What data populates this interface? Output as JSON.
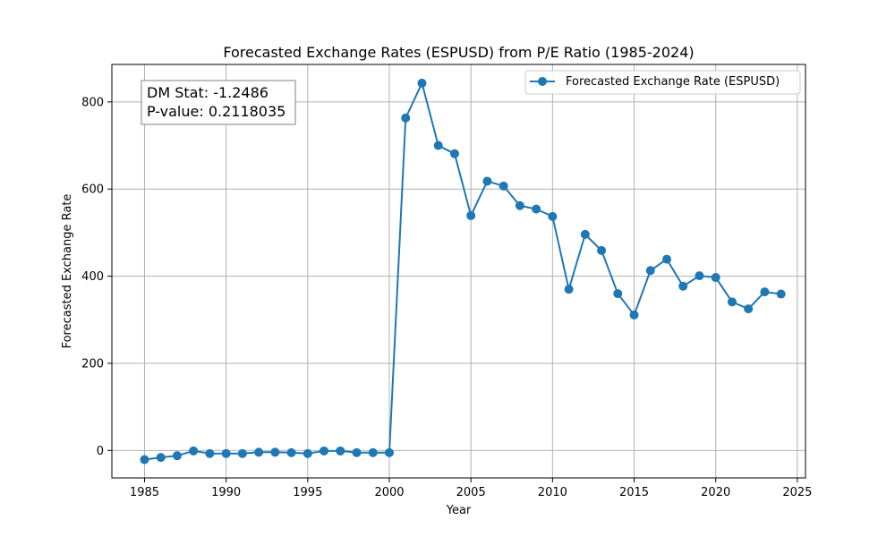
{
  "chart_data": {
    "type": "line",
    "title": "Forecasted Exchange Rates (ESPUSD) from P/E Ratio (1985-2024)",
    "xlabel": "Year",
    "ylabel": "Forecasted Exchange Rate",
    "xlim": [
      1983,
      2025.5
    ],
    "ylim": [
      -63,
      886
    ],
    "xticks": [
      1985,
      1990,
      1995,
      2000,
      2005,
      2010,
      2015,
      2020,
      2025
    ],
    "yticks": [
      0,
      200,
      400,
      600,
      800
    ],
    "grid": true,
    "legend_position": "top-right",
    "color": "#1f77b4",
    "series": [
      {
        "name": "Forecasted Exchange Rate (ESPUSD)",
        "x": [
          1985,
          1986,
          1987,
          1988,
          1989,
          1990,
          1991,
          1992,
          1993,
          1994,
          1995,
          1996,
          1997,
          1998,
          1999,
          2000,
          2001,
          2002,
          2003,
          2004,
          2005,
          2006,
          2007,
          2008,
          2009,
          2010,
          2011,
          2012,
          2013,
          2014,
          2015,
          2016,
          2017,
          2018,
          2019,
          2020,
          2021,
          2022,
          2023,
          2024
        ],
        "y": [
          -21,
          -16,
          -12,
          -1,
          -7,
          -7,
          -7,
          -4,
          -4,
          -5,
          -7,
          -1,
          -1,
          -5,
          -5,
          -5,
          763,
          843,
          700,
          681,
          539,
          618,
          607,
          562,
          554,
          537,
          370,
          496,
          459,
          360,
          311,
          413,
          439,
          377,
          401,
          397,
          341,
          325,
          364,
          359
        ]
      }
    ],
    "annotation": {
      "lines": [
        "DM Stat: -1.2486",
        "P-value: 0.2118035"
      ],
      "position": "top-left"
    }
  }
}
